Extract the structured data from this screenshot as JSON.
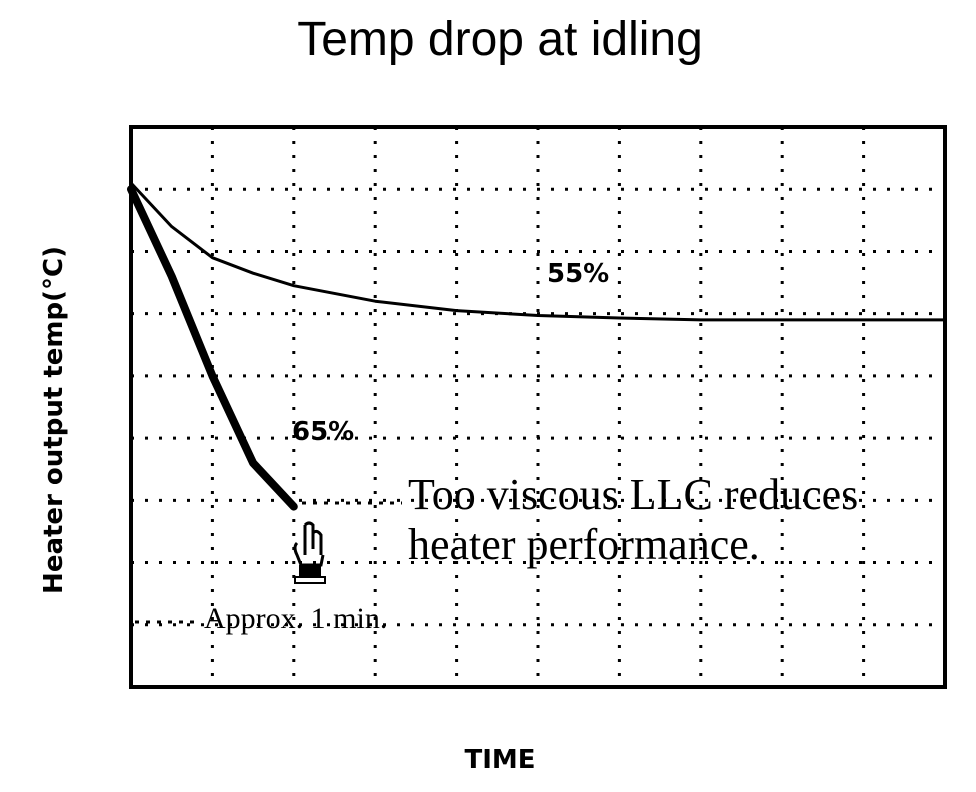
{
  "chart_data": {
    "type": "line",
    "title": "Temp drop at idling",
    "xlabel": "TIME",
    "ylabel": "Heater output temp(°C)",
    "xlim": [
      0,
      10
    ],
    "ylim": [
      0,
      9
    ],
    "grid": true,
    "series": [
      {
        "name": "55%",
        "x": [
          0,
          0.5,
          1,
          1.5,
          2,
          3,
          4,
          5,
          6,
          7,
          8,
          9,
          10
        ],
        "values": [
          8.1,
          7.4,
          6.9,
          6.65,
          6.45,
          6.2,
          6.05,
          5.97,
          5.93,
          5.9,
          5.9,
          5.9,
          5.9
        ]
      },
      {
        "name": "65%",
        "x": [
          0,
          0.5,
          1,
          1.5,
          2
        ],
        "values": [
          8.0,
          6.6,
          5.0,
          3.6,
          2.9
        ]
      }
    ],
    "annotations": {
      "note_line1": "Too viscous LLC reduces",
      "note_line2": "heater performance.",
      "marker_label": "Approx. 1 min."
    }
  }
}
